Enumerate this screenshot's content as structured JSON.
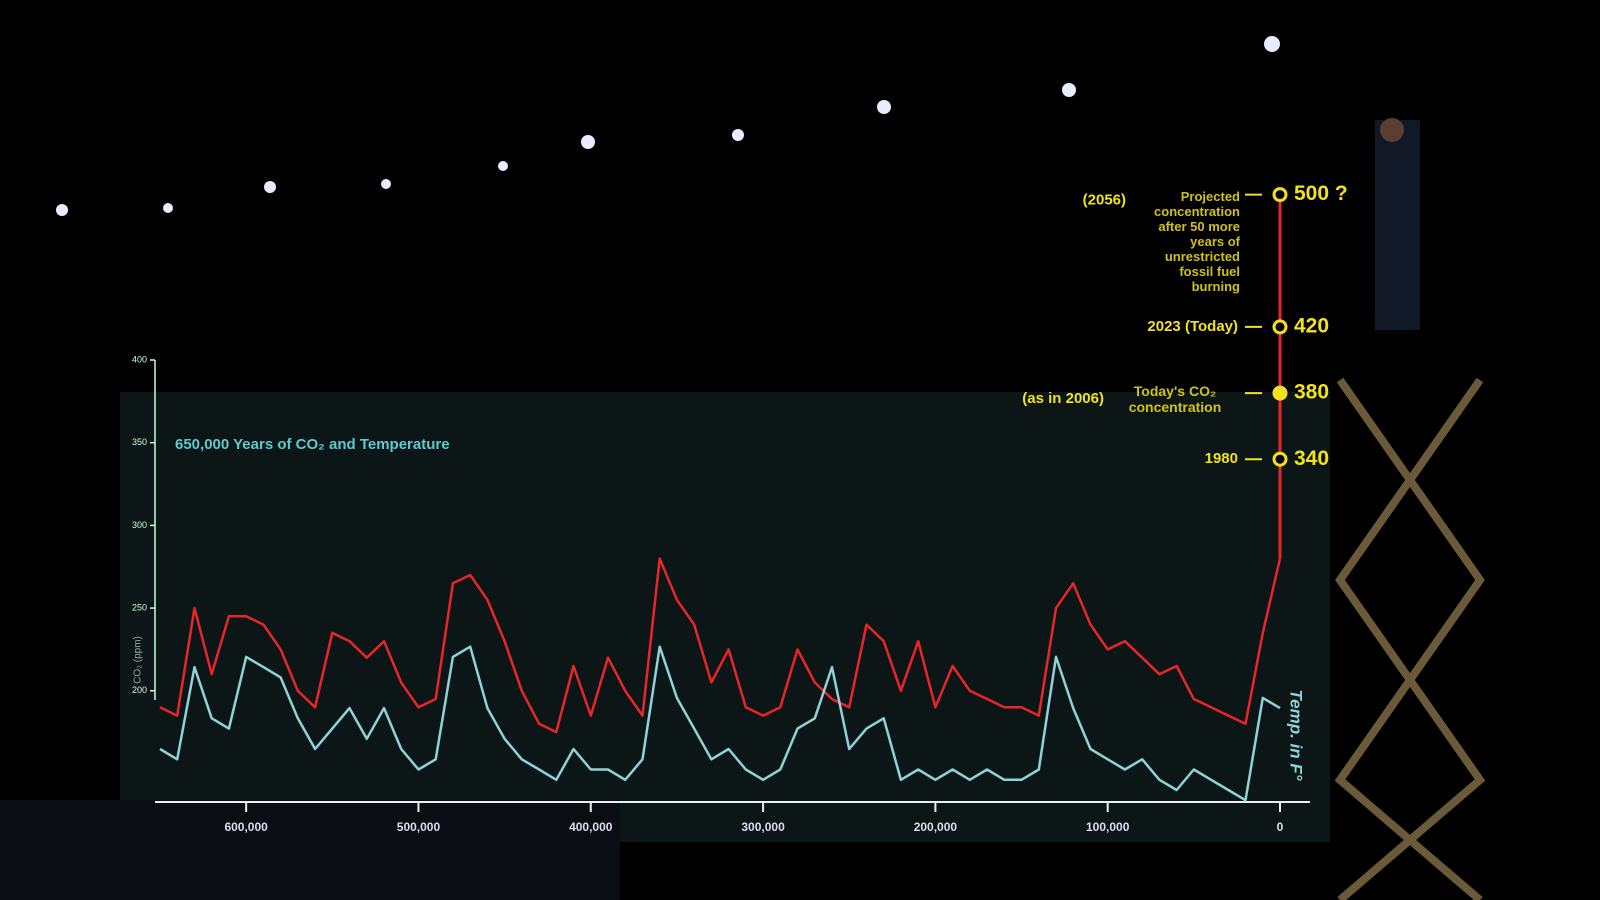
{
  "chart_data": {
    "type": "line",
    "title": "650,000 Years of CO₂ and Temperature",
    "y_label": "CO₂ (ppm)",
    "y2_label": "Temp. in F°",
    "x": [
      650000,
      640000,
      630000,
      620000,
      610000,
      600000,
      590000,
      580000,
      570000,
      560000,
      550000,
      540000,
      530000,
      520000,
      510000,
      500000,
      490000,
      480000,
      470000,
      460000,
      450000,
      440000,
      430000,
      420000,
      410000,
      400000,
      390000,
      380000,
      370000,
      360000,
      350000,
      340000,
      330000,
      320000,
      310000,
      300000,
      290000,
      280000,
      270000,
      260000,
      250000,
      240000,
      230000,
      220000,
      210000,
      200000,
      190000,
      180000,
      170000,
      160000,
      150000,
      140000,
      130000,
      120000,
      110000,
      100000,
      90000,
      80000,
      70000,
      60000,
      50000,
      40000,
      30000,
      20000,
      10000,
      0
    ],
    "series": [
      {
        "name": "CO₂",
        "color": "#e8262a",
        "axis": "y",
        "values": [
          190,
          185,
          250,
          210,
          245,
          245,
          240,
          225,
          200,
          190,
          235,
          230,
          220,
          230,
          205,
          190,
          195,
          265,
          270,
          255,
          230,
          200,
          180,
          175,
          215,
          185,
          220,
          200,
          185,
          280,
          255,
          240,
          205,
          225,
          190,
          185,
          190,
          225,
          205,
          195,
          190,
          240,
          230,
          200,
          230,
          190,
          215,
          200,
          195,
          190,
          190,
          185,
          250,
          265,
          240,
          225,
          230,
          220,
          210,
          215,
          195,
          190,
          185,
          180,
          235,
          280
        ]
      },
      {
        "name": "Temperature",
        "color": "#8fd3d8",
        "axis": "y2",
        "values": [
          -8,
          -9,
          0,
          -5,
          -6,
          1,
          0,
          -1,
          -5,
          -8,
          -6,
          -4,
          -7,
          -4,
          -8,
          -10,
          -9,
          1,
          2,
          -4,
          -7,
          -9,
          -10,
          -11,
          -8,
          -10,
          -10,
          -11,
          -9,
          2,
          -3,
          -6,
          -9,
          -8,
          -10,
          -11,
          -10,
          -6,
          -5,
          0,
          -8,
          -6,
          -5,
          -11,
          -10,
          -11,
          -10,
          -11,
          -10,
          -11,
          -11,
          -10,
          1,
          -4,
          -8,
          -9,
          -10,
          -9,
          -11,
          -12,
          -10,
          -11,
          -12,
          -13,
          -3,
          -4
        ]
      }
    ],
    "xlim": [
      650000,
      0
    ],
    "xticks": [
      {
        "value": 600000,
        "label": "600,000"
      },
      {
        "value": 500000,
        "label": "500,000"
      },
      {
        "value": 400000,
        "label": "400,000"
      },
      {
        "value": 300000,
        "label": "300,000"
      },
      {
        "value": 200000,
        "label": "200,000"
      },
      {
        "value": 100000,
        "label": "100,000"
      },
      0
    ],
    "ylim": [
      140,
      400
    ],
    "yticks": [
      200,
      250,
      300,
      350,
      400
    ],
    "y2lim": [
      -12,
      30
    ],
    "annotations": [
      {
        "label": "1980",
        "value": 340
      },
      {
        "label": "Today's CO₂ concentration",
        "note": "(as in 2006)",
        "value": 380
      },
      {
        "label": "2023 (Today)",
        "value": 420
      },
      {
        "year": "(2056)",
        "label": "Projected concentration after 50 more years of unrestricted fossil fuel burning",
        "value": 500,
        "value_label": "500 ?"
      }
    ],
    "annotation_color": "#f2e21e"
  }
}
